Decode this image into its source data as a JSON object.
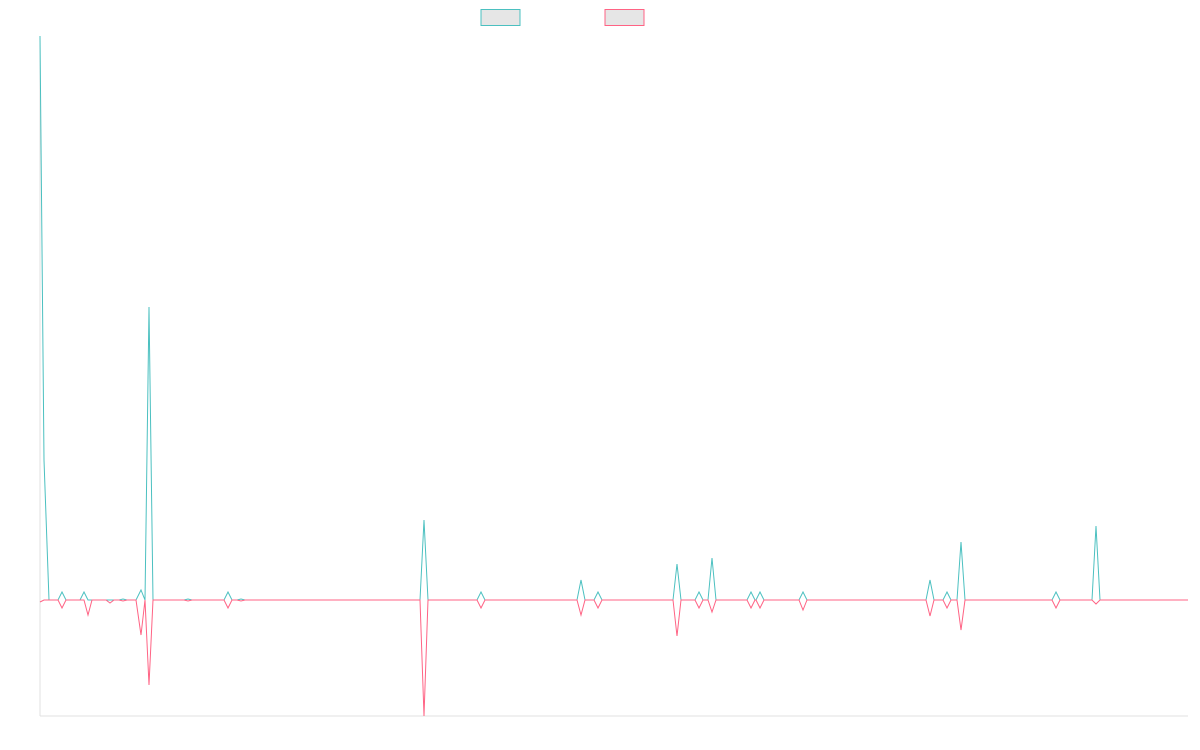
{
  "chart_data": {
    "type": "line",
    "x": [
      0,
      4,
      9,
      18,
      22,
      26,
      40,
      44,
      48,
      52,
      66,
      70,
      74,
      79,
      83,
      87,
      96,
      101,
      105,
      109,
      113,
      144,
      148,
      152,
      184,
      188,
      192,
      197,
      201,
      205,
      380,
      384,
      388,
      437,
      441,
      445,
      537,
      541,
      545,
      554,
      558,
      562,
      633,
      637,
      641,
      655,
      659,
      663,
      668,
      672,
      676,
      707,
      711,
      715,
      716,
      720,
      724,
      759,
      763,
      767,
      886,
      890,
      894,
      903,
      907,
      911,
      917,
      921,
      925,
      1012,
      1016,
      1020,
      1052,
      1056,
      1060,
      1148
    ],
    "series": [
      {
        "color": "#4bc0c0",
        "values": [
          564,
          140,
          0,
          0,
          8,
          0,
          0,
          8,
          0,
          0,
          0,
          0,
          0,
          0,
          1,
          0,
          0,
          10,
          0,
          293,
          0,
          0,
          1,
          0,
          0,
          8,
          0,
          0,
          1,
          0,
          0,
          80,
          0,
          0,
          8,
          0,
          0,
          20,
          0,
          0,
          8,
          0,
          0,
          36,
          0,
          0,
          8,
          0,
          0,
          42,
          0,
          0,
          8,
          0,
          0,
          8,
          0,
          0,
          8,
          0,
          0,
          20,
          0,
          0,
          8,
          0,
          0,
          58,
          0,
          0,
          8,
          0,
          0,
          74,
          0,
          0
        ]
      },
      {
        "color": "#ff6384",
        "values": [
          -2,
          0,
          0,
          0,
          -8,
          0,
          0,
          0,
          -15,
          0,
          0,
          -3,
          0,
          0,
          -1,
          0,
          0,
          -35,
          0,
          -85,
          0,
          0,
          -1,
          0,
          0,
          -8,
          0,
          0,
          -1,
          0,
          0,
          -116,
          0,
          0,
          -8,
          0,
          0,
          -15,
          0,
          0,
          -8,
          0,
          0,
          -36,
          0,
          0,
          -8,
          0,
          0,
          -12,
          0,
          0,
          -8,
          0,
          0,
          -8,
          0,
          0,
          -10,
          0,
          0,
          -16,
          0,
          0,
          -8,
          0,
          0,
          -30,
          0,
          0,
          -8,
          0,
          0,
          -4,
          0,
          0
        ]
      }
    ],
    "xlim": [
      0,
      1148
    ],
    "ylim": [
      -116,
      564
    ]
  }
}
